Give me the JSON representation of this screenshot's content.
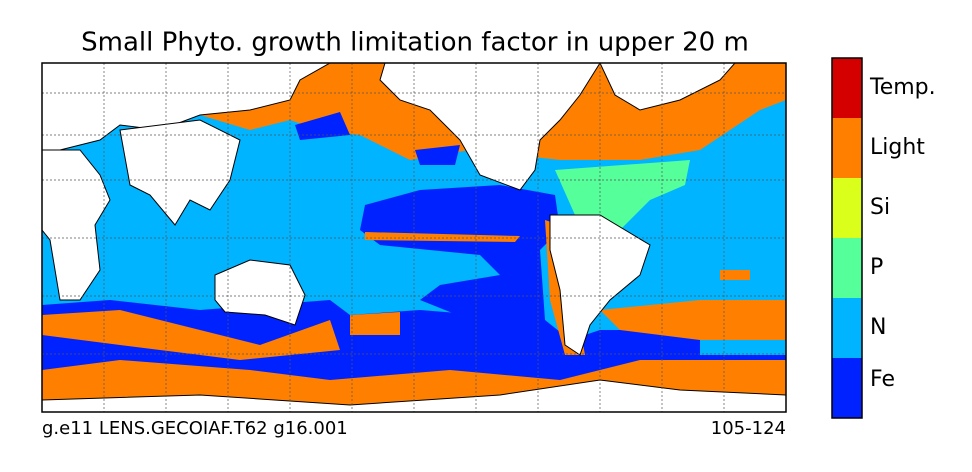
{
  "title": "Small Phyto. growth limitation factor in upper 20 m",
  "footer": {
    "left": "g.e11 LENS.GECOIAF.T62 g16.001",
    "right": "105-124"
  },
  "legend": {
    "items": [
      {
        "label": "Temp.",
        "color": "#d40000"
      },
      {
        "label": "Light",
        "color": "#ff8000"
      },
      {
        "label": "Si",
        "color": "#d9ff1a"
      },
      {
        "label": "P",
        "color": "#55ff99"
      },
      {
        "label": "N",
        "color": "#00b4ff"
      },
      {
        "label": "Fe",
        "color": "#0022ff"
      }
    ]
  }
}
